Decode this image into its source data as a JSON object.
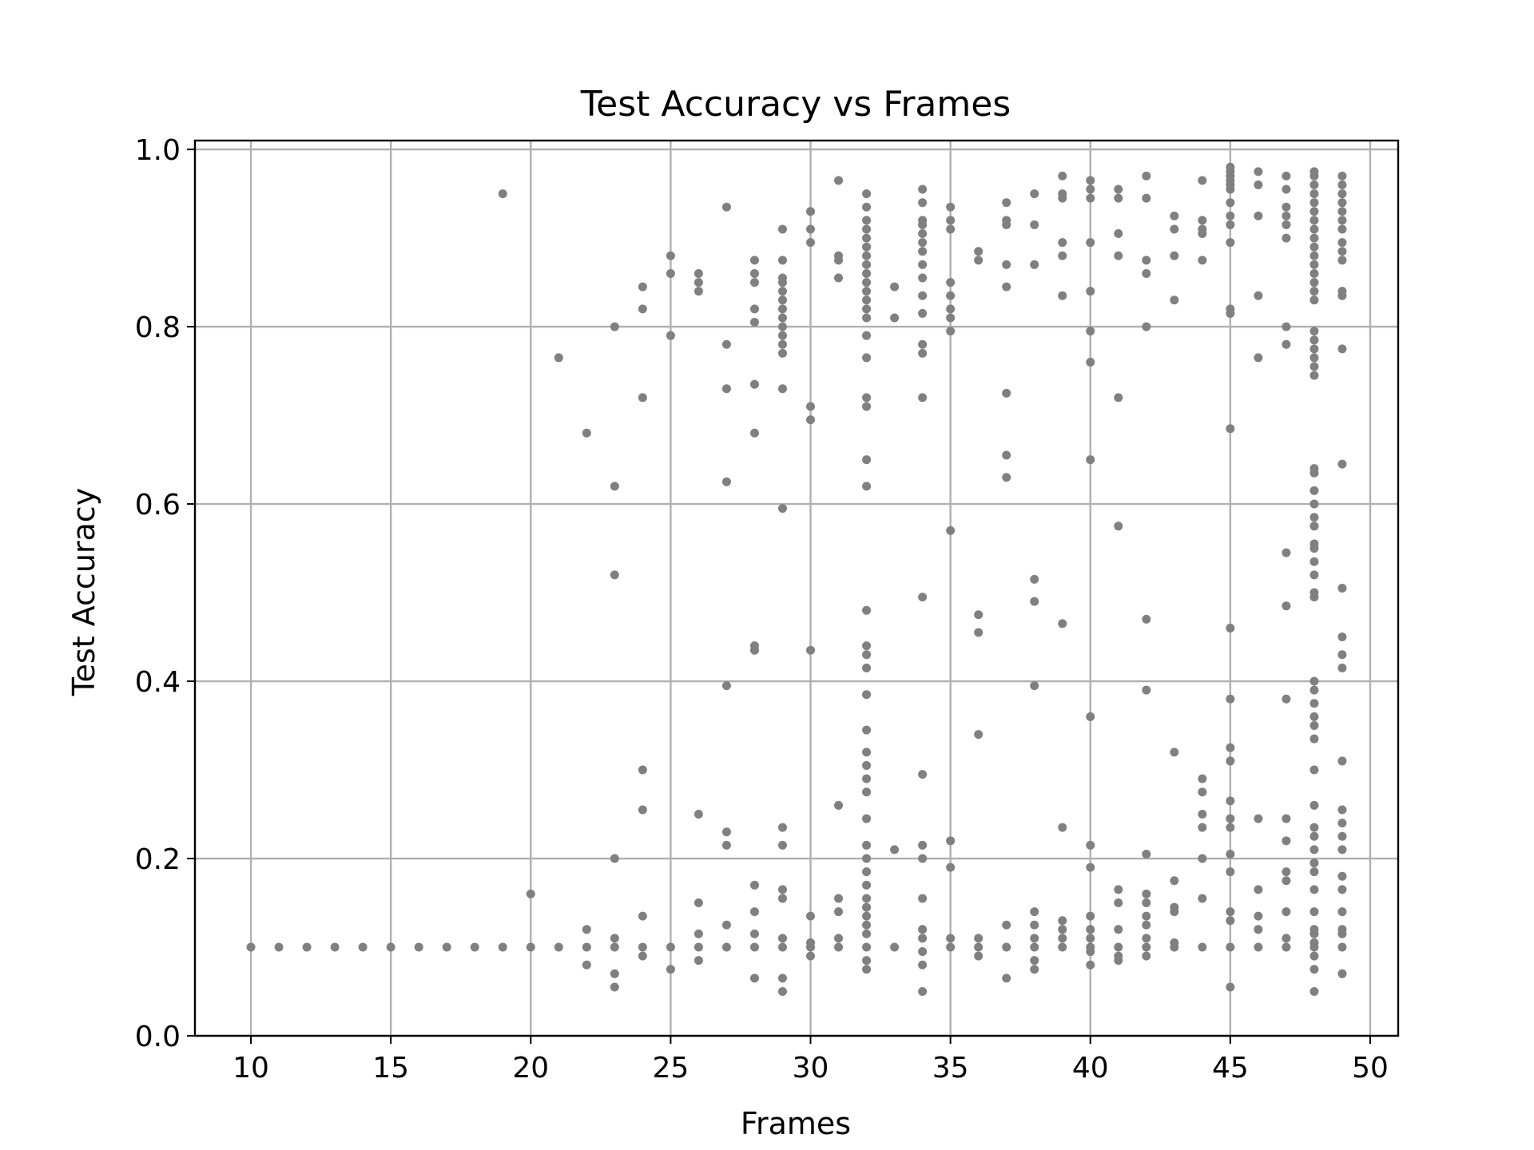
{
  "chart_data": {
    "type": "scatter",
    "title": "Test Accuracy vs Frames",
    "xlabel": "Frames",
    "ylabel": "Test Accuracy",
    "xlim": [
      8,
      51
    ],
    "ylim": [
      0.0,
      1.01
    ],
    "xticks": [
      10,
      15,
      20,
      25,
      30,
      35,
      40,
      45,
      50
    ],
    "xtick_labels": [
      "10",
      "15",
      "20",
      "25",
      "30",
      "35",
      "40",
      "45",
      "50"
    ],
    "yticks": [
      0.0,
      0.2,
      0.4,
      0.6,
      0.8,
      1.0
    ],
    "ytick_labels": [
      "0.0",
      "0.2",
      "0.4",
      "0.6",
      "0.8",
      "1.0"
    ],
    "grid": true,
    "marker_color": "#808080",
    "points": [
      [
        10,
        0.1
      ],
      [
        11,
        0.1
      ],
      [
        12,
        0.1
      ],
      [
        13,
        0.1
      ],
      [
        14,
        0.1
      ],
      [
        15,
        0.1
      ],
      [
        16,
        0.1
      ],
      [
        17,
        0.1
      ],
      [
        18,
        0.1
      ],
      [
        19,
        0.1
      ],
      [
        19,
        0.95
      ],
      [
        20,
        0.1
      ],
      [
        20,
        0.16
      ],
      [
        21,
        0.1
      ],
      [
        21,
        0.765
      ],
      [
        22,
        0.08
      ],
      [
        22,
        0.1
      ],
      [
        22,
        0.12
      ],
      [
        22,
        0.68
      ],
      [
        23,
        0.055
      ],
      [
        23,
        0.07
      ],
      [
        23,
        0.1
      ],
      [
        23,
        0.11
      ],
      [
        23,
        0.2
      ],
      [
        23,
        0.52
      ],
      [
        23,
        0.62
      ],
      [
        23,
        0.8
      ],
      [
        24,
        0.09
      ],
      [
        24,
        0.1
      ],
      [
        24,
        0.135
      ],
      [
        24,
        0.255
      ],
      [
        24,
        0.3
      ],
      [
        24,
        0.72
      ],
      [
        24,
        0.82
      ],
      [
        24,
        0.845
      ],
      [
        25,
        0.075
      ],
      [
        25,
        0.1
      ],
      [
        25,
        0.79
      ],
      [
        25,
        0.86
      ],
      [
        25,
        0.88
      ],
      [
        26,
        0.085
      ],
      [
        26,
        0.1
      ],
      [
        26,
        0.115
      ],
      [
        26,
        0.15
      ],
      [
        26,
        0.25
      ],
      [
        26,
        0.84
      ],
      [
        26,
        0.85
      ],
      [
        26,
        0.86
      ],
      [
        27,
        0.1
      ],
      [
        27,
        0.125
      ],
      [
        27,
        0.215
      ],
      [
        27,
        0.23
      ],
      [
        27,
        0.395
      ],
      [
        27,
        0.625
      ],
      [
        27,
        0.73
      ],
      [
        27,
        0.78
      ],
      [
        27,
        0.935
      ],
      [
        28,
        0.065
      ],
      [
        28,
        0.1
      ],
      [
        28,
        0.115
      ],
      [
        28,
        0.14
      ],
      [
        28,
        0.17
      ],
      [
        28,
        0.435
      ],
      [
        28,
        0.44
      ],
      [
        28,
        0.68
      ],
      [
        28,
        0.735
      ],
      [
        28,
        0.805
      ],
      [
        28,
        0.82
      ],
      [
        28,
        0.85
      ],
      [
        28,
        0.86
      ],
      [
        28,
        0.875
      ],
      [
        29,
        0.05
      ],
      [
        29,
        0.065
      ],
      [
        29,
        0.1
      ],
      [
        29,
        0.11
      ],
      [
        29,
        0.155
      ],
      [
        29,
        0.165
      ],
      [
        29,
        0.215
      ],
      [
        29,
        0.235
      ],
      [
        29,
        0.595
      ],
      [
        29,
        0.73
      ],
      [
        29,
        0.77
      ],
      [
        29,
        0.78
      ],
      [
        29,
        0.79
      ],
      [
        29,
        0.8
      ],
      [
        29,
        0.81
      ],
      [
        29,
        0.82
      ],
      [
        29,
        0.83
      ],
      [
        29,
        0.84
      ],
      [
        29,
        0.85
      ],
      [
        29,
        0.855
      ],
      [
        29,
        0.875
      ],
      [
        29,
        0.91
      ],
      [
        30,
        0.09
      ],
      [
        30,
        0.1
      ],
      [
        30,
        0.105
      ],
      [
        30,
        0.135
      ],
      [
        30,
        0.435
      ],
      [
        30,
        0.695
      ],
      [
        30,
        0.71
      ],
      [
        30,
        0.895
      ],
      [
        30,
        0.91
      ],
      [
        30,
        0.93
      ],
      [
        31,
        0.1
      ],
      [
        31,
        0.11
      ],
      [
        31,
        0.14
      ],
      [
        31,
        0.155
      ],
      [
        31,
        0.26
      ],
      [
        31,
        0.855
      ],
      [
        31,
        0.875
      ],
      [
        31,
        0.88
      ],
      [
        31,
        0.965
      ],
      [
        32,
        0.075
      ],
      [
        32,
        0.085
      ],
      [
        32,
        0.1
      ],
      [
        32,
        0.115
      ],
      [
        32,
        0.125
      ],
      [
        32,
        0.135
      ],
      [
        32,
        0.145
      ],
      [
        32,
        0.155
      ],
      [
        32,
        0.17
      ],
      [
        32,
        0.185
      ],
      [
        32,
        0.2
      ],
      [
        32,
        0.215
      ],
      [
        32,
        0.245
      ],
      [
        32,
        0.275
      ],
      [
        32,
        0.29
      ],
      [
        32,
        0.305
      ],
      [
        32,
        0.32
      ],
      [
        32,
        0.345
      ],
      [
        32,
        0.385
      ],
      [
        32,
        0.415
      ],
      [
        32,
        0.43
      ],
      [
        32,
        0.44
      ],
      [
        32,
        0.48
      ],
      [
        32,
        0.62
      ],
      [
        32,
        0.65
      ],
      [
        32,
        0.71
      ],
      [
        32,
        0.72
      ],
      [
        32,
        0.765
      ],
      [
        32,
        0.79
      ],
      [
        32,
        0.81
      ],
      [
        32,
        0.82
      ],
      [
        32,
        0.83
      ],
      [
        32,
        0.84
      ],
      [
        32,
        0.85
      ],
      [
        32,
        0.86
      ],
      [
        32,
        0.87
      ],
      [
        32,
        0.88
      ],
      [
        32,
        0.89
      ],
      [
        32,
        0.9
      ],
      [
        32,
        0.91
      ],
      [
        32,
        0.92
      ],
      [
        32,
        0.935
      ],
      [
        32,
        0.95
      ],
      [
        33,
        0.1
      ],
      [
        33,
        0.21
      ],
      [
        33,
        0.81
      ],
      [
        33,
        0.845
      ],
      [
        34,
        0.05
      ],
      [
        34,
        0.08
      ],
      [
        34,
        0.095
      ],
      [
        34,
        0.11
      ],
      [
        34,
        0.12
      ],
      [
        34,
        0.155
      ],
      [
        34,
        0.2
      ],
      [
        34,
        0.215
      ],
      [
        34,
        0.295
      ],
      [
        34,
        0.495
      ],
      [
        34,
        0.72
      ],
      [
        34,
        0.77
      ],
      [
        34,
        0.78
      ],
      [
        34,
        0.815
      ],
      [
        34,
        0.835
      ],
      [
        34,
        0.855
      ],
      [
        34,
        0.87
      ],
      [
        34,
        0.885
      ],
      [
        34,
        0.895
      ],
      [
        34,
        0.905
      ],
      [
        34,
        0.915
      ],
      [
        34,
        0.92
      ],
      [
        34,
        0.94
      ],
      [
        34,
        0.955
      ],
      [
        35,
        0.1
      ],
      [
        35,
        0.11
      ],
      [
        35,
        0.19
      ],
      [
        35,
        0.22
      ],
      [
        35,
        0.57
      ],
      [
        35,
        0.795
      ],
      [
        35,
        0.81
      ],
      [
        35,
        0.82
      ],
      [
        35,
        0.835
      ],
      [
        35,
        0.85
      ],
      [
        35,
        0.91
      ],
      [
        35,
        0.92
      ],
      [
        35,
        0.935
      ],
      [
        36,
        0.09
      ],
      [
        36,
        0.1
      ],
      [
        36,
        0.11
      ],
      [
        36,
        0.34
      ],
      [
        36,
        0.455
      ],
      [
        36,
        0.475
      ],
      [
        36,
        0.875
      ],
      [
        36,
        0.885
      ],
      [
        37,
        0.065
      ],
      [
        37,
        0.1
      ],
      [
        37,
        0.125
      ],
      [
        37,
        0.63
      ],
      [
        37,
        0.655
      ],
      [
        37,
        0.725
      ],
      [
        37,
        0.845
      ],
      [
        37,
        0.87
      ],
      [
        37,
        0.915
      ],
      [
        37,
        0.92
      ],
      [
        37,
        0.94
      ],
      [
        38,
        0.075
      ],
      [
        38,
        0.085
      ],
      [
        38,
        0.1
      ],
      [
        38,
        0.11
      ],
      [
        38,
        0.125
      ],
      [
        38,
        0.14
      ],
      [
        38,
        0.395
      ],
      [
        38,
        0.49
      ],
      [
        38,
        0.515
      ],
      [
        38,
        0.87
      ],
      [
        38,
        0.915
      ],
      [
        38,
        0.95
      ],
      [
        39,
        0.1
      ],
      [
        39,
        0.11
      ],
      [
        39,
        0.12
      ],
      [
        39,
        0.13
      ],
      [
        39,
        0.235
      ],
      [
        39,
        0.465
      ],
      [
        39,
        0.835
      ],
      [
        39,
        0.88
      ],
      [
        39,
        0.895
      ],
      [
        39,
        0.945
      ],
      [
        39,
        0.95
      ],
      [
        39,
        0.97
      ],
      [
        40,
        0.08
      ],
      [
        40,
        0.095
      ],
      [
        40,
        0.1
      ],
      [
        40,
        0.11
      ],
      [
        40,
        0.12
      ],
      [
        40,
        0.135
      ],
      [
        40,
        0.19
      ],
      [
        40,
        0.215
      ],
      [
        40,
        0.36
      ],
      [
        40,
        0.65
      ],
      [
        40,
        0.76
      ],
      [
        40,
        0.795
      ],
      [
        40,
        0.84
      ],
      [
        40,
        0.895
      ],
      [
        40,
        0.945
      ],
      [
        40,
        0.955
      ],
      [
        40,
        0.965
      ],
      [
        41,
        0.085
      ],
      [
        41,
        0.09
      ],
      [
        41,
        0.1
      ],
      [
        41,
        0.12
      ],
      [
        41,
        0.15
      ],
      [
        41,
        0.165
      ],
      [
        41,
        0.575
      ],
      [
        41,
        0.72
      ],
      [
        41,
        0.88
      ],
      [
        41,
        0.905
      ],
      [
        41,
        0.945
      ],
      [
        41,
        0.955
      ],
      [
        42,
        0.09
      ],
      [
        42,
        0.1
      ],
      [
        42,
        0.11
      ],
      [
        42,
        0.125
      ],
      [
        42,
        0.135
      ],
      [
        42,
        0.15
      ],
      [
        42,
        0.16
      ],
      [
        42,
        0.205
      ],
      [
        42,
        0.39
      ],
      [
        42,
        0.47
      ],
      [
        42,
        0.8
      ],
      [
        42,
        0.86
      ],
      [
        42,
        0.875
      ],
      [
        42,
        0.945
      ],
      [
        42,
        0.97
      ],
      [
        43,
        0.1
      ],
      [
        43,
        0.105
      ],
      [
        43,
        0.14
      ],
      [
        43,
        0.145
      ],
      [
        43,
        0.175
      ],
      [
        43,
        0.32
      ],
      [
        43,
        0.83
      ],
      [
        43,
        0.88
      ],
      [
        43,
        0.91
      ],
      [
        43,
        0.925
      ],
      [
        44,
        0.1
      ],
      [
        44,
        0.155
      ],
      [
        44,
        0.2
      ],
      [
        44,
        0.235
      ],
      [
        44,
        0.25
      ],
      [
        44,
        0.275
      ],
      [
        44,
        0.29
      ],
      [
        44,
        0.875
      ],
      [
        44,
        0.905
      ],
      [
        44,
        0.91
      ],
      [
        44,
        0.92
      ],
      [
        44,
        0.965
      ],
      [
        45,
        0.055
      ],
      [
        45,
        0.1
      ],
      [
        45,
        0.13
      ],
      [
        45,
        0.14
      ],
      [
        45,
        0.185
      ],
      [
        45,
        0.205
      ],
      [
        45,
        0.235
      ],
      [
        45,
        0.245
      ],
      [
        45,
        0.265
      ],
      [
        45,
        0.31
      ],
      [
        45,
        0.325
      ],
      [
        45,
        0.38
      ],
      [
        45,
        0.46
      ],
      [
        45,
        0.685
      ],
      [
        45,
        0.815
      ],
      [
        45,
        0.82
      ],
      [
        45,
        0.895
      ],
      [
        45,
        0.915
      ],
      [
        45,
        0.925
      ],
      [
        45,
        0.94
      ],
      [
        45,
        0.955
      ],
      [
        45,
        0.96
      ],
      [
        45,
        0.965
      ],
      [
        45,
        0.97
      ],
      [
        45,
        0.975
      ],
      [
        45,
        0.98
      ],
      [
        46,
        0.1
      ],
      [
        46,
        0.12
      ],
      [
        46,
        0.135
      ],
      [
        46,
        0.165
      ],
      [
        46,
        0.245
      ],
      [
        46,
        0.765
      ],
      [
        46,
        0.835
      ],
      [
        46,
        0.925
      ],
      [
        46,
        0.96
      ],
      [
        46,
        0.975
      ],
      [
        47,
        0.1
      ],
      [
        47,
        0.11
      ],
      [
        47,
        0.14
      ],
      [
        47,
        0.175
      ],
      [
        47,
        0.185
      ],
      [
        47,
        0.22
      ],
      [
        47,
        0.245
      ],
      [
        47,
        0.38
      ],
      [
        47,
        0.485
      ],
      [
        47,
        0.545
      ],
      [
        47,
        0.78
      ],
      [
        47,
        0.8
      ],
      [
        47,
        0.9
      ],
      [
        47,
        0.915
      ],
      [
        47,
        0.925
      ],
      [
        47,
        0.935
      ],
      [
        47,
        0.955
      ],
      [
        47,
        0.97
      ],
      [
        48,
        0.05
      ],
      [
        48,
        0.075
      ],
      [
        48,
        0.09
      ],
      [
        48,
        0.1
      ],
      [
        48,
        0.105
      ],
      [
        48,
        0.115
      ],
      [
        48,
        0.12
      ],
      [
        48,
        0.14
      ],
      [
        48,
        0.165
      ],
      [
        48,
        0.185
      ],
      [
        48,
        0.195
      ],
      [
        48,
        0.21
      ],
      [
        48,
        0.225
      ],
      [
        48,
        0.235
      ],
      [
        48,
        0.26
      ],
      [
        48,
        0.3
      ],
      [
        48,
        0.335
      ],
      [
        48,
        0.35
      ],
      [
        48,
        0.36
      ],
      [
        48,
        0.375
      ],
      [
        48,
        0.39
      ],
      [
        48,
        0.4
      ],
      [
        48,
        0.495
      ],
      [
        48,
        0.5
      ],
      [
        48,
        0.52
      ],
      [
        48,
        0.535
      ],
      [
        48,
        0.55
      ],
      [
        48,
        0.555
      ],
      [
        48,
        0.575
      ],
      [
        48,
        0.585
      ],
      [
        48,
        0.6
      ],
      [
        48,
        0.615
      ],
      [
        48,
        0.635
      ],
      [
        48,
        0.64
      ],
      [
        48,
        0.745
      ],
      [
        48,
        0.755
      ],
      [
        48,
        0.765
      ],
      [
        48,
        0.775
      ],
      [
        48,
        0.785
      ],
      [
        48,
        0.795
      ],
      [
        48,
        0.83
      ],
      [
        48,
        0.84
      ],
      [
        48,
        0.85
      ],
      [
        48,
        0.86
      ],
      [
        48,
        0.87
      ],
      [
        48,
        0.88
      ],
      [
        48,
        0.89
      ],
      [
        48,
        0.9
      ],
      [
        48,
        0.91
      ],
      [
        48,
        0.92
      ],
      [
        48,
        0.93
      ],
      [
        48,
        0.94
      ],
      [
        48,
        0.95
      ],
      [
        48,
        0.96
      ],
      [
        48,
        0.97
      ],
      [
        48,
        0.975
      ],
      [
        49,
        0.07
      ],
      [
        49,
        0.1
      ],
      [
        49,
        0.115
      ],
      [
        49,
        0.12
      ],
      [
        49,
        0.14
      ],
      [
        49,
        0.165
      ],
      [
        49,
        0.18
      ],
      [
        49,
        0.21
      ],
      [
        49,
        0.225
      ],
      [
        49,
        0.24
      ],
      [
        49,
        0.255
      ],
      [
        49,
        0.31
      ],
      [
        49,
        0.415
      ],
      [
        49,
        0.43
      ],
      [
        49,
        0.45
      ],
      [
        49,
        0.505
      ],
      [
        49,
        0.645
      ],
      [
        49,
        0.775
      ],
      [
        49,
        0.835
      ],
      [
        49,
        0.84
      ],
      [
        49,
        0.875
      ],
      [
        49,
        0.885
      ],
      [
        49,
        0.895
      ],
      [
        49,
        0.91
      ],
      [
        49,
        0.92
      ],
      [
        49,
        0.93
      ],
      [
        49,
        0.94
      ],
      [
        49,
        0.95
      ],
      [
        49,
        0.96
      ],
      [
        49,
        0.97
      ]
    ]
  }
}
